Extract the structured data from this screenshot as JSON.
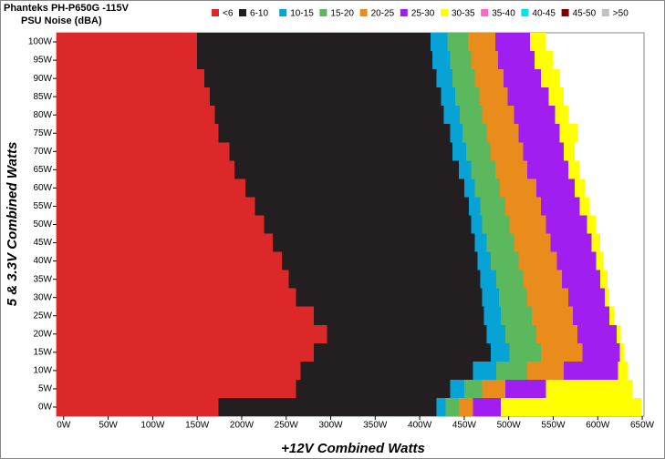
{
  "chart_data": {
    "type": "banded-heatmap",
    "title": "Phanteks PH-P650G -115V",
    "subtitle": "PSU Noise (dBA)",
    "x_label": "+12V Combined Watts",
    "y_label": "5 & 3.3V Combined Watts",
    "bands": [
      {
        "name": "<6",
        "color": "#dc2828"
      },
      {
        "name": "6-10",
        "color": "#231f20"
      },
      {
        "name": "10-15",
        "color": "#08a3d6"
      },
      {
        "name": "15-20",
        "color": "#5cb85c"
      },
      {
        "name": "20-25",
        "color": "#e98c1c"
      },
      {
        "name": "25-30",
        "color": "#a01ff0"
      },
      {
        "name": "30-35",
        "color": "#ffff00"
      },
      {
        "name": "35-40",
        "color": "#ff66cc"
      },
      {
        "name": "40-45",
        "color": "#00e6e6"
      },
      {
        "name": "45-50",
        "color": "#800000"
      },
      {
        "name": ">50",
        "color": "#c0c0c0"
      }
    ],
    "rows": [
      {
        "y": 100,
        "edges": [
          150,
          412,
          431,
          454,
          485,
          524,
          542
        ]
      },
      {
        "y": 95,
        "edges": [
          150,
          414,
          434,
          458,
          488,
          529,
          550
        ]
      },
      {
        "y": 90,
        "edges": [
          158,
          419,
          437,
          462,
          494,
          536,
          557
        ]
      },
      {
        "y": 85,
        "edges": [
          164,
          424,
          440,
          467,
          499,
          545,
          562
        ]
      },
      {
        "y": 80,
        "edges": [
          170,
          427,
          445,
          470,
          506,
          552,
          567
        ]
      },
      {
        "y": 75,
        "edges": [
          174,
          434,
          448,
          475,
          511,
          557,
          577
        ]
      },
      {
        "y": 70,
        "edges": [
          186,
          437,
          452,
          480,
          516,
          562,
          574
        ]
      },
      {
        "y": 65,
        "edges": [
          192,
          444,
          458,
          485,
          521,
          567,
          580
        ]
      },
      {
        "y": 60,
        "edges": [
          204,
          450,
          462,
          490,
          531,
          574,
          586
        ]
      },
      {
        "y": 55,
        "edges": [
          215,
          455,
          468,
          496,
          536,
          580,
          591
        ]
      },
      {
        "y": 50,
        "edges": [
          225,
          458,
          470,
          501,
          542,
          588,
          598
        ]
      },
      {
        "y": 45,
        "edges": [
          235,
          462,
          475,
          506,
          547,
          593,
          603
        ]
      },
      {
        "y": 40,
        "edges": [
          245,
          465,
          480,
          511,
          554,
          598,
          606
        ]
      },
      {
        "y": 35,
        "edges": [
          253,
          468,
          486,
          516,
          560,
          603,
          611
        ]
      },
      {
        "y": 30,
        "edges": [
          261,
          470,
          489,
          521,
          567,
          608,
          613
        ]
      },
      {
        "y": 25,
        "edges": [
          281,
          472,
          491,
          526,
          572,
          613,
          618
        ]
      },
      {
        "y": 20,
        "edges": [
          296,
          475,
          496,
          531,
          577,
          621,
          626
        ]
      },
      {
        "y": 15,
        "edges": [
          281,
          480,
          501,
          536,
          583,
          625,
          630
        ]
      },
      {
        "y": 10,
        "edges": [
          266,
          460,
          486,
          521,
          562,
          623,
          634
        ]
      },
      {
        "y": 5,
        "edges": [
          261,
          434,
          450,
          470,
          496,
          542,
          639
        ]
      },
      {
        "y": 0,
        "edges": [
          174,
          419,
          429,
          444,
          460,
          491,
          649
        ]
      }
    ],
    "xlim": [
      -8,
      652
    ],
    "ylim": [
      -2.5,
      102.5
    ],
    "xticks": [
      {
        "value": 0,
        "label": "0W"
      },
      {
        "value": 50,
        "label": "50W"
      },
      {
        "value": 100,
        "label": "100W"
      },
      {
        "value": 150,
        "label": "150W"
      },
      {
        "value": 200,
        "label": "200W"
      },
      {
        "value": 250,
        "label": "250W"
      },
      {
        "value": 300,
        "label": "300W"
      },
      {
        "value": 350,
        "label": "350W"
      },
      {
        "value": 400,
        "label": "400W"
      },
      {
        "value": 450,
        "label": "450W"
      },
      {
        "value": 500,
        "label": "500W"
      },
      {
        "value": 550,
        "label": "550W"
      },
      {
        "value": 600,
        "label": "600W"
      },
      {
        "value": 650,
        "label": "650W"
      }
    ],
    "yticks": [
      {
        "value": 0,
        "label": "0W"
      },
      {
        "value": 5,
        "label": "5W"
      },
      {
        "value": 10,
        "label": "10W"
      },
      {
        "value": 15,
        "label": "15W"
      },
      {
        "value": 20,
        "label": "20W"
      },
      {
        "value": 25,
        "label": "25W"
      },
      {
        "value": 30,
        "label": "30W"
      },
      {
        "value": 35,
        "label": "35W"
      },
      {
        "value": 40,
        "label": "40W"
      },
      {
        "value": 45,
        "label": "45W"
      },
      {
        "value": 50,
        "label": "50W"
      },
      {
        "value": 55,
        "label": "55W"
      },
      {
        "value": 60,
        "label": "60W"
      },
      {
        "value": 65,
        "label": "65W"
      },
      {
        "value": 70,
        "label": "70W"
      },
      {
        "value": 75,
        "label": "75W"
      },
      {
        "value": 80,
        "label": "80W"
      },
      {
        "value": 85,
        "label": "85W"
      },
      {
        "value": 90,
        "label": "90W"
      },
      {
        "value": 95,
        "label": "95W"
      },
      {
        "value": 100,
        "label": "100W"
      }
    ]
  }
}
